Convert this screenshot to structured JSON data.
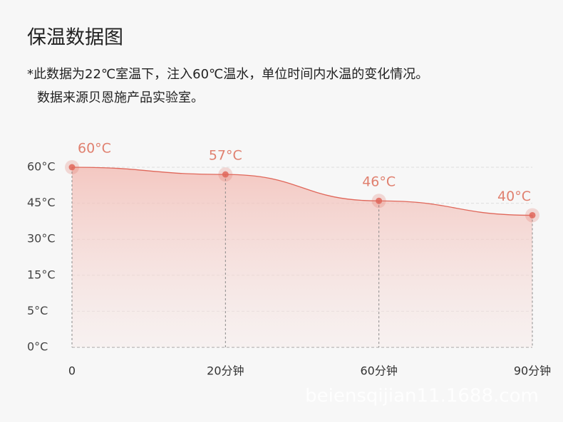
{
  "header": {
    "title": "保温数据图",
    "note": [
      "*此数据为22℃室温下，注入60℃温水，单位时间内水温的变化情况。",
      "数据来源贝恩施产品实验室。"
    ]
  },
  "watermark": "beiensqijian11.1688.com",
  "chart_data": {
    "type": "line",
    "categories": [
      "0",
      "20分钟",
      "60分钟",
      "90分钟"
    ],
    "series": [
      {
        "color": "#e0675a",
        "values": [
          60,
          57,
          46,
          40
        ],
        "value_labels": [
          "60°C",
          "57°C",
          "46°C",
          "40°C"
        ]
      }
    ],
    "ylim": [
      0,
      60
    ],
    "yticks": [
      {
        "value": 0,
        "label": "0°C"
      },
      {
        "value": 5,
        "label": "5°C"
      },
      {
        "value": 15,
        "label": "15°C"
      },
      {
        "value": 30,
        "label": "30°C"
      },
      {
        "value": 45,
        "label": "45°C"
      },
      {
        "value": 60,
        "label": "60°C"
      }
    ],
    "grid": true
  }
}
